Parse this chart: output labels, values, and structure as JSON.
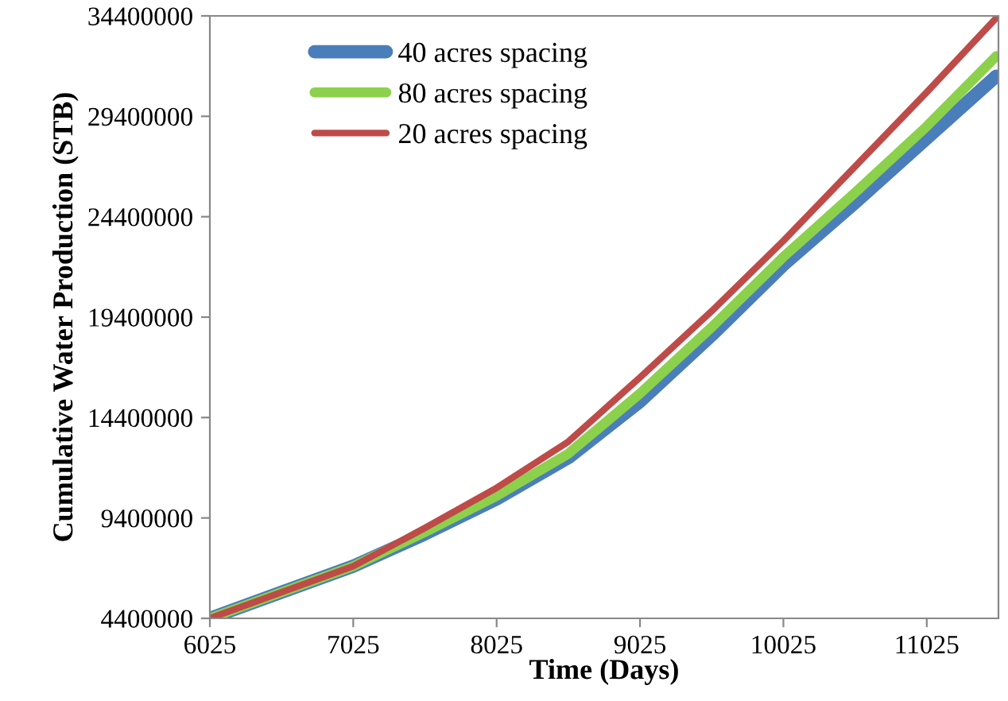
{
  "chart_data": {
    "type": "line",
    "xlabel": "Time (Days)",
    "ylabel": "Cumulative Water Production (STB)",
    "x": [
      6025,
      6525,
      7025,
      7525,
      8025,
      8525,
      9025,
      9525,
      10025,
      10525,
      11025,
      11510
    ],
    "series": [
      {
        "name": "40 acres spacing",
        "color": "#4a7ebb",
        "values": [
          4400000,
          5700000,
          7000000,
          8600000,
          10350000,
          12400000,
          15200000,
          18500000,
          22000000,
          25100000,
          28300000,
          31400000
        ]
      },
      {
        "name": "80 acres spacing",
        "color": "#8cd14b",
        "values": [
          4400000,
          5700000,
          7000000,
          8700000,
          10500000,
          12600000,
          15600000,
          18900000,
          22400000,
          25600000,
          28900000,
          32400000
        ]
      },
      {
        "name": "20 acres spacing",
        "color": "#be4b48",
        "values": [
          4400000,
          5700000,
          7000000,
          8900000,
          10900000,
          13200000,
          16400000,
          19700000,
          23200000,
          26900000,
          30600000,
          34300000
        ]
      }
    ],
    "xlim": [
      6025,
      11525
    ],
    "xticks": [
      6025,
      7025,
      8025,
      9025,
      10025,
      11025
    ],
    "ylim": [
      4400000,
      34400000
    ],
    "yticks": [
      4400000,
      9400000,
      14400000,
      19400000,
      24400000,
      29400000,
      34400000
    ],
    "grid": false,
    "legend": "top left",
    "marker": "none",
    "line_style": "solid"
  }
}
